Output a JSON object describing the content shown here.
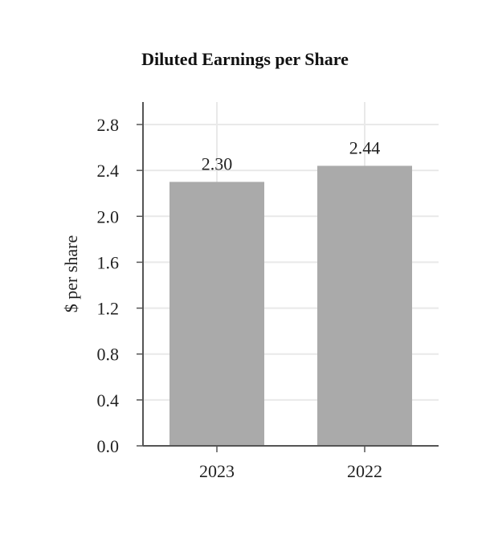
{
  "chart_data": {
    "type": "bar",
    "title": "Diluted Earnings per Share",
    "xlabel": "",
    "ylabel": "$ per share",
    "categories": [
      "2023",
      "2022"
    ],
    "values": [
      2.3,
      2.44
    ],
    "data_labels": [
      "2.30",
      "2.44"
    ],
    "ylim": [
      0,
      2.8
    ],
    "yticks": [
      "0.0",
      "0.4",
      "0.8",
      "1.2",
      "1.6",
      "2.0",
      "2.4",
      "2.8"
    ],
    "grid": true,
    "legend": "none",
    "bar_color": "#aaaaaa"
  }
}
